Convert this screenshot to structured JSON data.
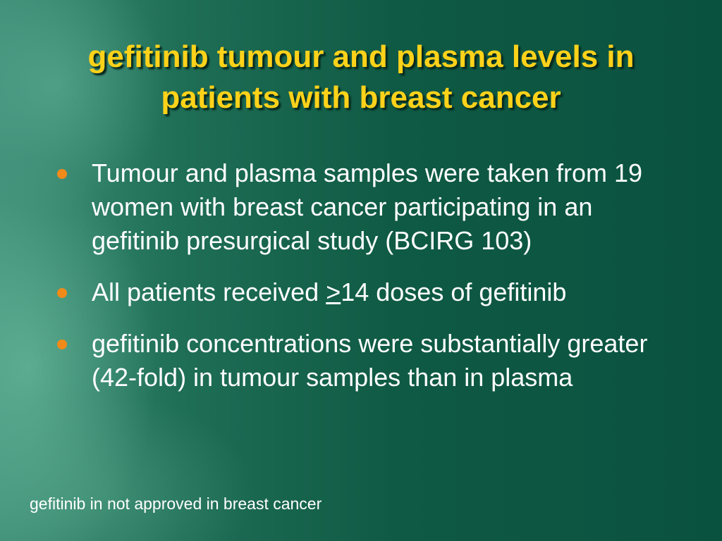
{
  "slide": {
    "title": "gefitinib tumour and plasma levels in patients with breast cancer",
    "bullets": [
      {
        "text": "Tumour and plasma samples were taken from 19 women with breast cancer participating in an gefitinib presurgical study (BCIRG 103)"
      },
      {
        "before": "All patients received ",
        "underlined": ">",
        "after": "14 doses of gefitinib"
      },
      {
        "text": "gefitinib concentrations were substantially greater (42-fold) in tumour samples than in plasma"
      }
    ],
    "footnote": "gefitinib in not approved in breast cancer"
  }
}
